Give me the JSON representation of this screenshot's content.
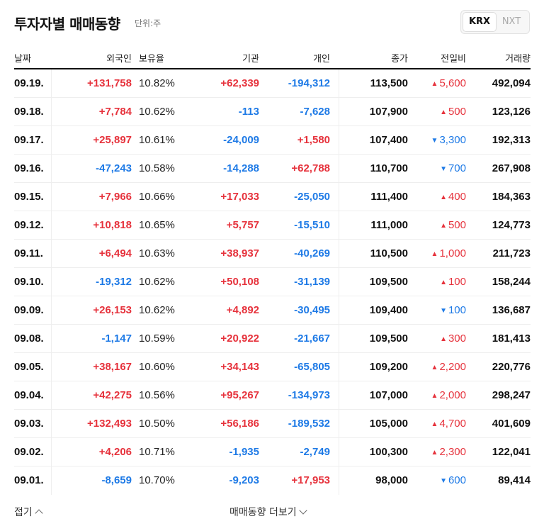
{
  "header": {
    "title": "투자자별 매매동향",
    "unit": "단위:주",
    "market_tabs": [
      {
        "label": "KRX",
        "selected": true
      },
      {
        "label": "NXT",
        "selected": false
      }
    ]
  },
  "colors": {
    "up": "#e6323c",
    "down": "#1e7ae6"
  },
  "table": {
    "headers": [
      "날짜",
      "외국인",
      "보유율",
      "기관",
      "개인",
      "종가",
      "전일비",
      "거래량"
    ],
    "rows": [
      {
        "date": "09.19.",
        "foreign": "+131,758",
        "hold": "10.82%",
        "inst": "+62,339",
        "indiv": "-194,312",
        "close": "113,500",
        "chg_dir": "up",
        "chg": "5,600",
        "vol": "492,094"
      },
      {
        "date": "09.18.",
        "foreign": "+7,784",
        "hold": "10.62%",
        "inst": "-113",
        "indiv": "-7,628",
        "close": "107,900",
        "chg_dir": "up",
        "chg": "500",
        "vol": "123,126"
      },
      {
        "date": "09.17.",
        "foreign": "+25,897",
        "hold": "10.61%",
        "inst": "-24,009",
        "indiv": "+1,580",
        "close": "107,400",
        "chg_dir": "down",
        "chg": "3,300",
        "vol": "192,313"
      },
      {
        "date": "09.16.",
        "foreign": "-47,243",
        "hold": "10.58%",
        "inst": "-14,288",
        "indiv": "+62,788",
        "close": "110,700",
        "chg_dir": "down",
        "chg": "700",
        "vol": "267,908"
      },
      {
        "date": "09.15.",
        "foreign": "+7,966",
        "hold": "10.66%",
        "inst": "+17,033",
        "indiv": "-25,050",
        "close": "111,400",
        "chg_dir": "up",
        "chg": "400",
        "vol": "184,363"
      },
      {
        "date": "09.12.",
        "foreign": "+10,818",
        "hold": "10.65%",
        "inst": "+5,757",
        "indiv": "-15,510",
        "close": "111,000",
        "chg_dir": "up",
        "chg": "500",
        "vol": "124,773"
      },
      {
        "date": "09.11.",
        "foreign": "+6,494",
        "hold": "10.63%",
        "inst": "+38,937",
        "indiv": "-40,269",
        "close": "110,500",
        "chg_dir": "up",
        "chg": "1,000",
        "vol": "211,723"
      },
      {
        "date": "09.10.",
        "foreign": "-19,312",
        "hold": "10.62%",
        "inst": "+50,108",
        "indiv": "-31,139",
        "close": "109,500",
        "chg_dir": "up",
        "chg": "100",
        "vol": "158,244"
      },
      {
        "date": "09.09.",
        "foreign": "+26,153",
        "hold": "10.62%",
        "inst": "+4,892",
        "indiv": "-30,495",
        "close": "109,400",
        "chg_dir": "down",
        "chg": "100",
        "vol": "136,687"
      },
      {
        "date": "09.08.",
        "foreign": "-1,147",
        "hold": "10.59%",
        "inst": "+20,922",
        "indiv": "-21,667",
        "close": "109,500",
        "chg_dir": "up",
        "chg": "300",
        "vol": "181,413"
      },
      {
        "date": "09.05.",
        "foreign": "+38,167",
        "hold": "10.60%",
        "inst": "+34,143",
        "indiv": "-65,805",
        "close": "109,200",
        "chg_dir": "up",
        "chg": "2,200",
        "vol": "220,776"
      },
      {
        "date": "09.04.",
        "foreign": "+42,275",
        "hold": "10.56%",
        "inst": "+95,267",
        "indiv": "-134,973",
        "close": "107,000",
        "chg_dir": "up",
        "chg": "2,000",
        "vol": "298,247"
      },
      {
        "date": "09.03.",
        "foreign": "+132,493",
        "hold": "10.50%",
        "inst": "+56,186",
        "indiv": "-189,532",
        "close": "105,000",
        "chg_dir": "up",
        "chg": "4,700",
        "vol": "401,609"
      },
      {
        "date": "09.02.",
        "foreign": "+4,206",
        "hold": "10.71%",
        "inst": "-1,935",
        "indiv": "-2,749",
        "close": "100,300",
        "chg_dir": "up",
        "chg": "2,300",
        "vol": "122,041"
      },
      {
        "date": "09.01.",
        "foreign": "-8,659",
        "hold": "10.70%",
        "inst": "-9,203",
        "indiv": "+17,953",
        "close": "98,000",
        "chg_dir": "down",
        "chg": "600",
        "vol": "89,414"
      }
    ]
  },
  "footer": {
    "fold_label": "접기",
    "more_label": "매매동향 더보기"
  }
}
